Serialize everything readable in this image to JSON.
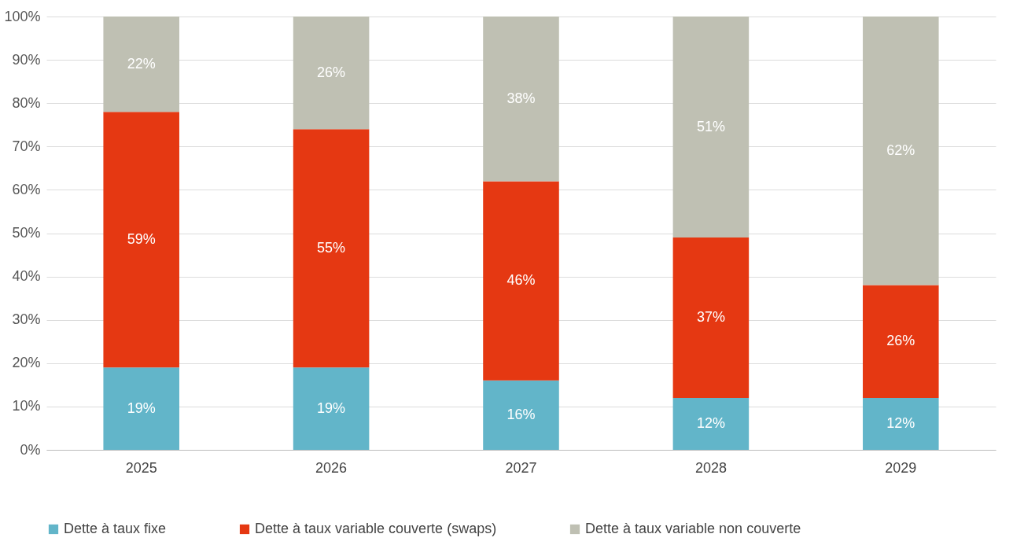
{
  "chart_data": {
    "type": "bar",
    "stacked": true,
    "categories": [
      "2025",
      "2026",
      "2027",
      "2028",
      "2029"
    ],
    "series": [
      {
        "name": "Dette à taux fixe",
        "color": "#62b5c9",
        "values": [
          19,
          19,
          16,
          12,
          12
        ],
        "value_labels": [
          "19%",
          "19%",
          "16%",
          "12%",
          "12%"
        ]
      },
      {
        "name": "Dette à taux variable couverte (swaps)",
        "color": "#e53812",
        "values": [
          59,
          55,
          46,
          37,
          26
        ],
        "value_labels": [
          "59%",
          "55%",
          "46%",
          "37%",
          "26%"
        ]
      },
      {
        "name": "Dette à taux variable non couverte",
        "color": "#bfc0b3",
        "values": [
          22,
          26,
          38,
          51,
          62
        ],
        "value_labels": [
          "22%",
          "26%",
          "38%",
          "51%",
          "62%"
        ]
      }
    ],
    "ylim": [
      0,
      100
    ],
    "yticks": [
      {
        "value": 0,
        "label": "0%"
      },
      {
        "value": 10,
        "label": "10%"
      },
      {
        "value": 20,
        "label": "20%"
      },
      {
        "value": 30,
        "label": "30%"
      },
      {
        "value": 40,
        "label": "40%"
      },
      {
        "value": 50,
        "label": "50%"
      },
      {
        "value": 60,
        "label": "60%"
      },
      {
        "value": 70,
        "label": "70%"
      },
      {
        "value": 80,
        "label": "80%"
      },
      {
        "value": 90,
        "label": "90%"
      },
      {
        "value": 100,
        "label": "100%"
      }
    ],
    "grid": "y",
    "legend": "bottom"
  }
}
